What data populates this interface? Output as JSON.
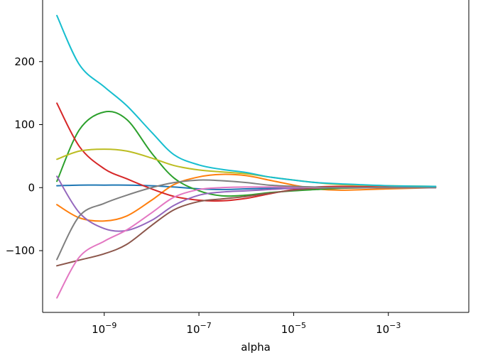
{
  "chart_data": {
    "type": "line",
    "title": "",
    "xlabel": "alpha",
    "ylabel": "",
    "xscale": "log",
    "xlim": [
      5e-11,
      0.05
    ],
    "ylim": [
      -198,
      300
    ],
    "grid": false,
    "legend": "none",
    "x_ticks": [
      {
        "value": 1e-09,
        "base": "10",
        "exp": "−9"
      },
      {
        "value": 1e-07,
        "base": "10",
        "exp": "−7"
      },
      {
        "value": 1e-05,
        "base": "10",
        "exp": "−5"
      },
      {
        "value": 0.001,
        "base": "10",
        "exp": "−3"
      }
    ],
    "y_ticks": [
      {
        "value": 200,
        "label": "200"
      },
      {
        "value": 100,
        "label": "100"
      },
      {
        "value": 0,
        "label": "0"
      },
      {
        "value": -100,
        "label": "−100"
      }
    ],
    "x": [
      1e-10,
      3e-10,
      1e-09,
      3e-09,
      1e-08,
      3e-08,
      1e-07,
      3e-07,
      1e-06,
      3e-06,
      1e-05,
      3e-05,
      0.0001,
      0.001,
      0.01
    ],
    "series": [
      {
        "color": "#1f77b4",
        "values": [
          3,
          4,
          4,
          4,
          3,
          1,
          -2,
          -3,
          -2,
          -1,
          0,
          0,
          0,
          0,
          0
        ]
      },
      {
        "color": "#ff7f0e",
        "values": [
          -27,
          -48,
          -53,
          -45,
          -20,
          5,
          17,
          21,
          19,
          12,
          4,
          -2,
          -4,
          -2,
          0
        ]
      },
      {
        "color": "#2ca02c",
        "values": [
          10,
          92,
          120,
          108,
          55,
          15,
          -5,
          -13,
          -12,
          -8,
          -5,
          -3,
          -1,
          0,
          0
        ]
      },
      {
        "color": "#d62728",
        "values": [
          134,
          65,
          30,
          14,
          -2,
          -14,
          -20,
          -21,
          -17,
          -10,
          -3,
          1,
          2,
          1,
          0
        ]
      },
      {
        "color": "#9467bd",
        "values": [
          18,
          -40,
          -65,
          -68,
          -52,
          -28,
          -12,
          -7,
          -5,
          -3,
          -1,
          0,
          0,
          0,
          0
        ]
      },
      {
        "color": "#8c564b",
        "values": [
          -124,
          -115,
          -105,
          -90,
          -60,
          -35,
          -22,
          -18,
          -14,
          -9,
          -4,
          -1,
          0,
          0,
          0
        ]
      },
      {
        "color": "#e377c2",
        "values": [
          -175,
          -110,
          -85,
          -67,
          -40,
          -15,
          -3,
          0,
          1,
          1,
          1,
          0,
          0,
          0,
          0
        ]
      },
      {
        "color": "#7f7f7f",
        "values": [
          -114,
          -45,
          -25,
          -12,
          0,
          8,
          12,
          11,
          8,
          4,
          2,
          1,
          0,
          0,
          0
        ]
      },
      {
        "color": "#bcbd22",
        "values": [
          45,
          58,
          61,
          58,
          47,
          35,
          28,
          25,
          22,
          17,
          12,
          8,
          5,
          3,
          2
        ]
      },
      {
        "color": "#17becf",
        "values": [
          273,
          195,
          160,
          130,
          88,
          52,
          36,
          29,
          24,
          17,
          12,
          8,
          6,
          3,
          2
        ]
      }
    ]
  }
}
